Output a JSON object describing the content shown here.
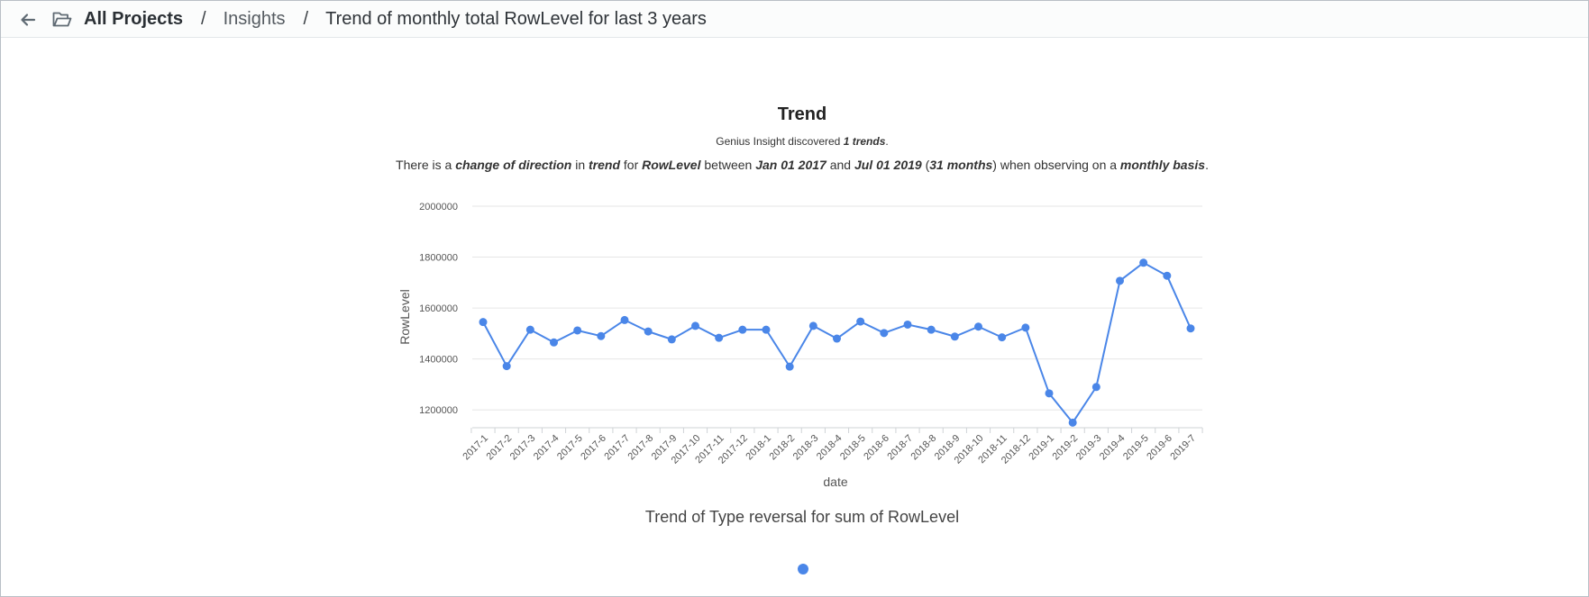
{
  "breadcrumb": {
    "root": "All Projects",
    "separator": "/",
    "section": "Insights",
    "current": "Trend of monthly total RowLevel for last 3 years"
  },
  "icons": {
    "back": "arrow-left-icon",
    "folder": "folder-open-icon"
  },
  "insight": {
    "title": "Trend",
    "subtitle_prefix": "Genius Insight discovered ",
    "subtitle_count": "1 trends",
    "subtitle_suffix": ".",
    "desc_1": "There is a ",
    "desc_2": "change of direction",
    "desc_3": " in ",
    "desc_4": "trend",
    "desc_5": " for ",
    "desc_6": "RowLevel",
    "desc_7": " between ",
    "desc_8": "Jan 01 2017",
    "desc_9": " and ",
    "desc_10": "Jul 01 2019",
    "desc_11": " (",
    "desc_12": "31 months",
    "desc_13": ") when observing on a ",
    "desc_14": "monthly basis",
    "desc_15": ".",
    "caption": "Trend of Type reversal for sum of RowLevel"
  },
  "colors": {
    "series": "#4a86e8",
    "grid": "#e6e6e6",
    "pager_dot": "#4a86e8"
  },
  "chart_data": {
    "type": "line",
    "xlabel": "date",
    "ylabel": "RowLevel",
    "ylim": [
      1130000,
      2000000
    ],
    "yticks": [
      1200000,
      1400000,
      1600000,
      1800000,
      2000000
    ],
    "ytick_labels": [
      "1200000",
      "1400000",
      "1600000",
      "1800000",
      "2000000"
    ],
    "grid": true,
    "categories": [
      "2017-1",
      "2017-2",
      "2017-3",
      "2017-4",
      "2017-5",
      "2017-6",
      "2017-7",
      "2017-8",
      "2017-9",
      "2017-10",
      "2017-11",
      "2017-12",
      "2018-1",
      "2018-2",
      "2018-3",
      "2018-4",
      "2018-5",
      "2018-6",
      "2018-7",
      "2018-8",
      "2018-9",
      "2018-10",
      "2018-11",
      "2018-12",
      "2019-1",
      "2019-2",
      "2019-3",
      "2019-4",
      "2019-5",
      "2019-6",
      "2019-7"
    ],
    "series": [
      {
        "values": [
          1545000,
          1372000,
          1515000,
          1465000,
          1512000,
          1490000,
          1553000,
          1508000,
          1477000,
          1530000,
          1483000,
          1515000,
          1515000,
          1370000,
          1530000,
          1480000,
          1547000,
          1502000,
          1535000,
          1515000,
          1488000,
          1527000,
          1485000,
          1523000,
          1265000,
          1150000,
          1290000,
          1707000,
          1778000,
          1727000,
          1520000
        ]
      }
    ]
  }
}
